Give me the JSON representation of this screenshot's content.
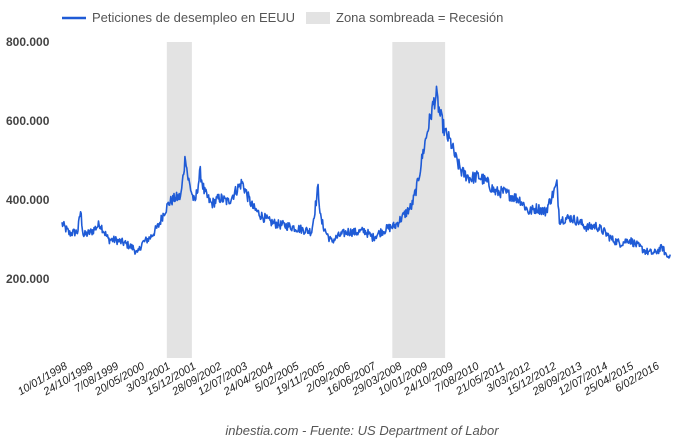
{
  "chart_data": {
    "type": "line",
    "title": "",
    "xlabel": "",
    "ylabel": "",
    "source": "inbestia.com - Fuente: US Department of Labor",
    "series": [
      {
        "name": "Peticiones de desempleo en EEUU",
        "color": "#1f5bd6",
        "points": [
          [
            "1998-01-10",
            340000
          ],
          [
            "1998-04-01",
            315000
          ],
          [
            "1998-07-01",
            320000
          ],
          [
            "1998-08-01",
            372000
          ],
          [
            "1998-09-01",
            310000
          ],
          [
            "1998-12-01",
            320000
          ],
          [
            "1999-03-01",
            340000
          ],
          [
            "1999-06-01",
            300000
          ],
          [
            "1999-09-01",
            298000
          ],
          [
            "1999-12-01",
            290000
          ],
          [
            "2000-03-01",
            278000
          ],
          [
            "2000-04-15",
            263000
          ],
          [
            "2000-06-01",
            290000
          ],
          [
            "2000-09-01",
            305000
          ],
          [
            "2000-12-01",
            335000
          ],
          [
            "2001-02-01",
            370000
          ],
          [
            "2001-04-01",
            395000
          ],
          [
            "2001-06-01",
            405000
          ],
          [
            "2001-08-01",
            408000
          ],
          [
            "2001-09-22",
            515000
          ],
          [
            "2001-10-15",
            460000
          ],
          [
            "2001-11-15",
            430000
          ],
          [
            "2002-01-01",
            390000
          ],
          [
            "2002-03-01",
            470000
          ],
          [
            "2002-04-15",
            420000
          ],
          [
            "2002-07-01",
            390000
          ],
          [
            "2002-10-01",
            405000
          ],
          [
            "2003-01-01",
            395000
          ],
          [
            "2003-04-01",
            425000
          ],
          [
            "2003-06-01",
            445000
          ],
          [
            "2003-08-01",
            410000
          ],
          [
            "2003-10-01",
            380000
          ],
          [
            "2004-01-01",
            360000
          ],
          [
            "2004-04-01",
            345000
          ],
          [
            "2004-07-01",
            338000
          ],
          [
            "2004-10-01",
            335000
          ],
          [
            "2005-01-01",
            330000
          ],
          [
            "2005-04-01",
            325000
          ],
          [
            "2005-07-01",
            320000
          ],
          [
            "2005-09-10",
            430000
          ],
          [
            "2005-10-10",
            350000
          ],
          [
            "2005-12-01",
            320000
          ],
          [
            "2006-02-01",
            295000
          ],
          [
            "2006-05-01",
            310000
          ],
          [
            "2006-08-01",
            320000
          ],
          [
            "2006-11-01",
            318000
          ],
          [
            "2007-02-01",
            322000
          ],
          [
            "2007-05-01",
            305000
          ],
          [
            "2007-08-01",
            320000
          ],
          [
            "2007-11-01",
            330000
          ],
          [
            "2008-01-01",
            335000
          ],
          [
            "2008-04-01",
            360000
          ],
          [
            "2008-07-01",
            385000
          ],
          [
            "2008-09-01",
            440000
          ],
          [
            "2008-11-01",
            520000
          ],
          [
            "2009-01-01",
            590000
          ],
          [
            "2009-03-01",
            650000
          ],
          [
            "2009-03-28",
            665000
          ],
          [
            "2009-05-01",
            620000
          ],
          [
            "2009-07-01",
            570000
          ],
          [
            "2009-09-01",
            545000
          ],
          [
            "2009-11-01",
            500000
          ],
          [
            "2010-01-01",
            470000
          ],
          [
            "2010-04-01",
            455000
          ],
          [
            "2010-07-01",
            460000
          ],
          [
            "2010-10-01",
            445000
          ],
          [
            "2011-01-01",
            420000
          ],
          [
            "2011-04-01",
            420000
          ],
          [
            "2011-07-01",
            410000
          ],
          [
            "2011-10-01",
            400000
          ],
          [
            "2012-01-01",
            370000
          ],
          [
            "2012-04-01",
            380000
          ],
          [
            "2012-07-01",
            370000
          ],
          [
            "2012-11-05",
            440000
          ],
          [
            "2012-12-01",
            350000
          ],
          [
            "2013-04-01",
            355000
          ],
          [
            "2013-07-01",
            345000
          ],
          [
            "2013-10-01",
            330000
          ],
          [
            "2014-01-01",
            335000
          ],
          [
            "2014-04-01",
            320000
          ],
          [
            "2014-07-01",
            300000
          ],
          [
            "2014-10-01",
            290000
          ],
          [
            "2015-01-01",
            300000
          ],
          [
            "2015-04-01",
            285000
          ],
          [
            "2015-07-01",
            270000
          ],
          [
            "2015-10-01",
            265000
          ],
          [
            "2016-01-01",
            280000
          ],
          [
            "2016-02-01",
            265000
          ],
          [
            "2016-03-01",
            255000
          ],
          [
            "2016-04-01",
            270000
          ]
        ]
      }
    ],
    "recessions": {
      "label": "Zona sombreada = Recesión",
      "color": "#e3e3e3",
      "periods": [
        [
          "2001-03-01",
          "2001-11-30"
        ],
        [
          "2007-12-01",
          "2009-06-30"
        ]
      ]
    },
    "x_ticks": [
      "10/01/1998",
      "24/10/1998",
      "7/08/1999",
      "20/05/2000",
      "3/03/2001",
      "15/12/2001",
      "28/09/2002",
      "12/07/2003",
      "24/04/2004",
      "5/02/2005",
      "19/11/2005",
      "2/09/2006",
      "16/06/2007",
      "29/03/2008",
      "10/01/2009",
      "24/10/2009",
      "7/08/2010",
      "21/05/2011",
      "3/03/2012",
      "15/12/2012",
      "28/09/2013",
      "12/07/2014",
      "25/04/2015",
      "6/02/2016"
    ],
    "y_ticks": [
      {
        "value": 800000,
        "label": "800.000"
      },
      {
        "value": 600000,
        "label": "600.000"
      },
      {
        "value": 400000,
        "label": "400.000"
      },
      {
        "value": 200000,
        "label": "200.000"
      }
    ],
    "ylim": [
      0,
      800000
    ],
    "xlim": [
      "1998-01-10",
      "2016-04-15"
    ],
    "grid": false,
    "legend_position": "top-left"
  }
}
